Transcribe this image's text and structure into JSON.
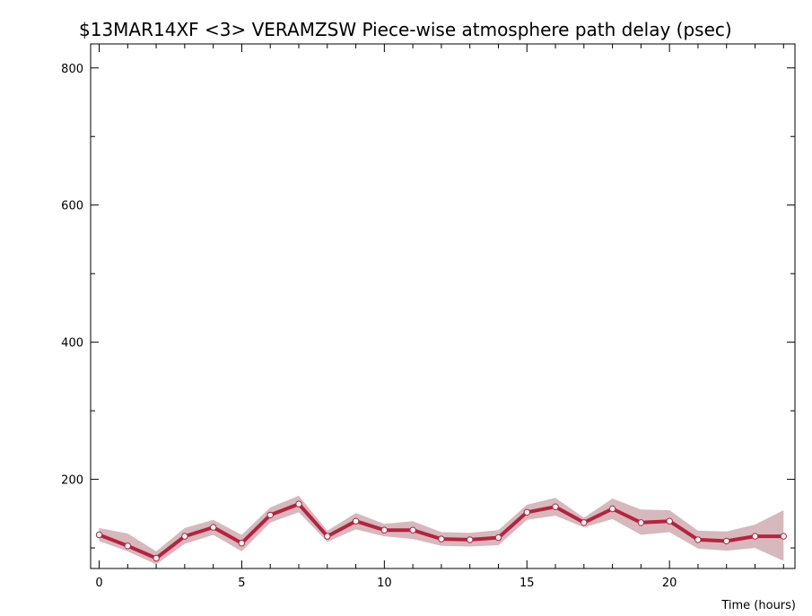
{
  "chart_data": {
    "type": "line",
    "title": "$13MAR14XF <3>  VERAMZSW  Piece-wise atmosphere path delay (psec)",
    "xlabel": "Time (hours)",
    "ylabel": "",
    "xlim": [
      -0.3,
      24.4
    ],
    "ylim": [
      70,
      835
    ],
    "x_ticks": [
      0,
      5,
      10,
      15,
      20
    ],
    "y_ticks": [
      200,
      400,
      600,
      800
    ],
    "x_minor_step": 1,
    "y_minor_step": 100,
    "grid": false,
    "colors": {
      "line": "#b5233f",
      "band": "#d7b8bd",
      "marker_fill": "#ffffff",
      "axis": "#000000"
    },
    "series": [
      {
        "x": [
          0,
          1,
          2,
          3,
          4,
          5,
          6,
          7,
          8,
          9,
          10,
          11,
          12,
          13,
          14,
          15,
          16,
          17,
          18,
          19,
          20,
          21,
          22,
          23,
          24
        ],
        "y": [
          119,
          103,
          85,
          117,
          130,
          107,
          148,
          164,
          117,
          139,
          126,
          126,
          113,
          112,
          115,
          152,
          160,
          137,
          157,
          137,
          139,
          112,
          110,
          117,
          117
        ],
        "band_upper": [
          129,
          121,
          95,
          129,
          141,
          119,
          159,
          176,
          125,
          151,
          135,
          139,
          123,
          122,
          126,
          163,
          173,
          144,
          172,
          156,
          155,
          125,
          124,
          134,
          155
        ],
        "band_lower": [
          110,
          95,
          76,
          106,
          119,
          95,
          137,
          152,
          109,
          127,
          117,
          113,
          103,
          102,
          104,
          141,
          147,
          130,
          142,
          119,
          123,
          99,
          96,
          100,
          81
        ]
      }
    ]
  }
}
